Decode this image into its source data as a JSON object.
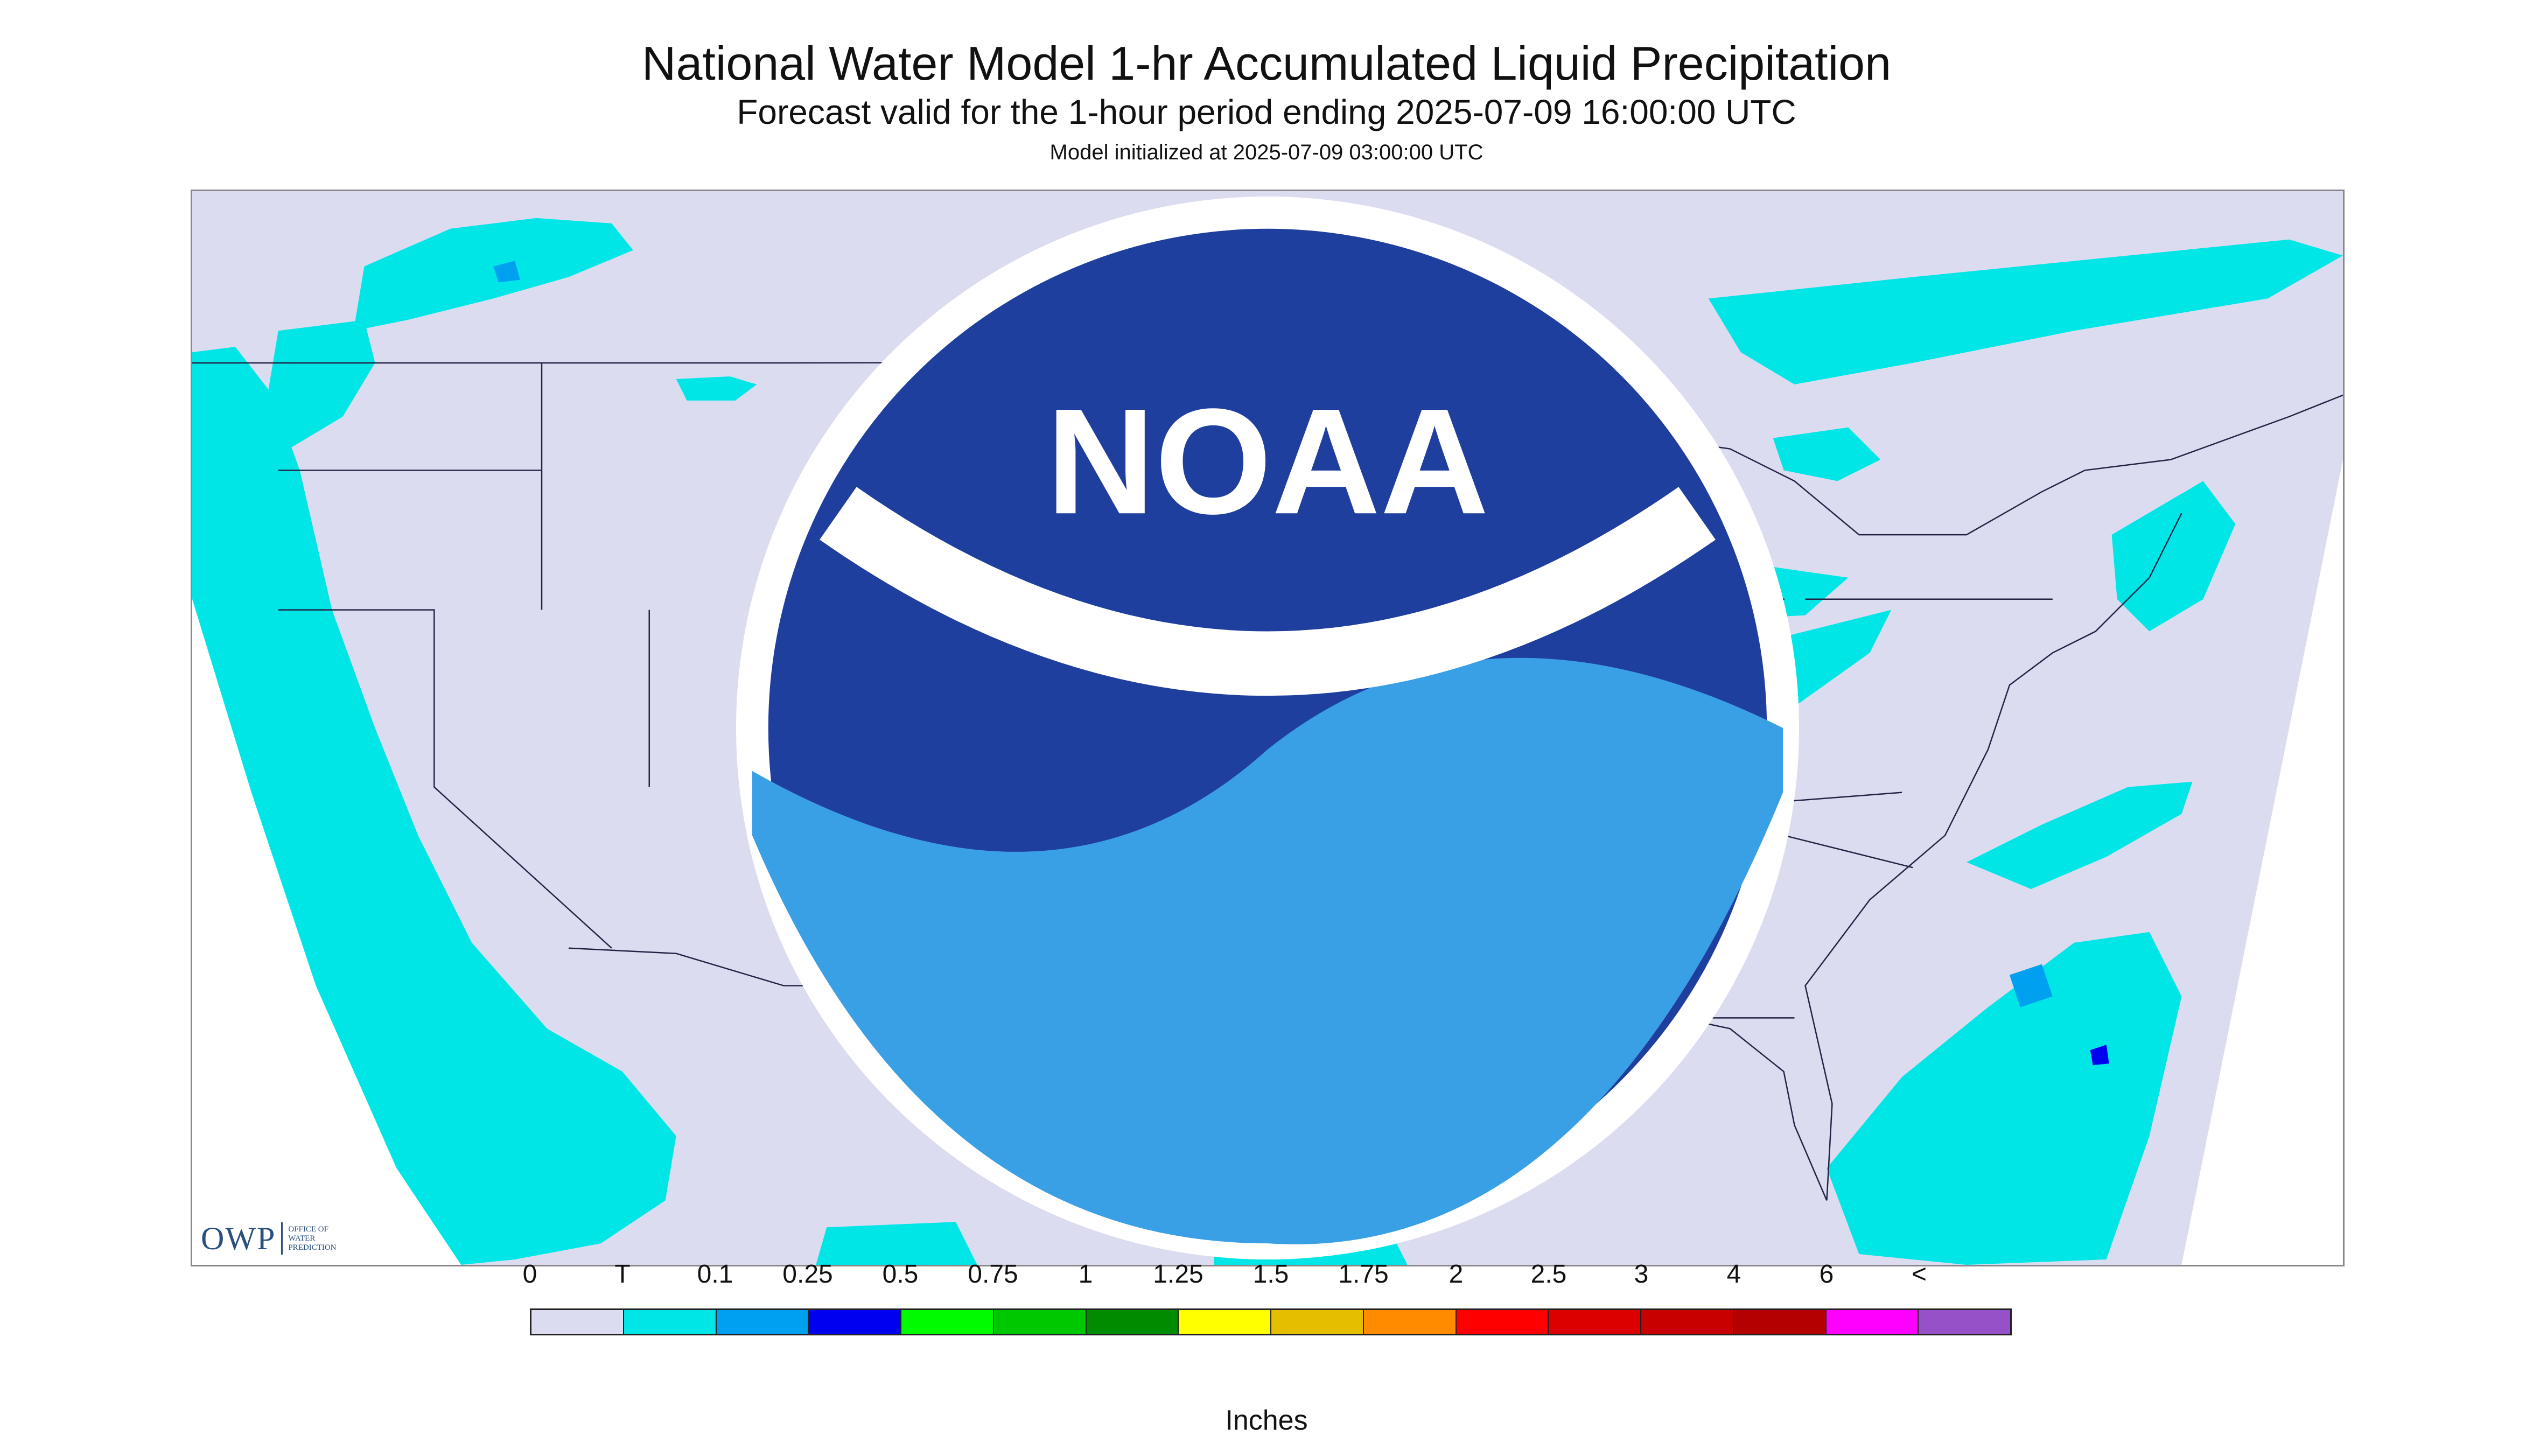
{
  "title": "National Water Model 1-hr Accumulated Liquid Precipitation",
  "subtitle": "Forecast valid for the 1-hour period ending 2025-07-09 16:00:00 UTC",
  "init_line": "Model initialized at 2025-07-09 03:00:00 UTC",
  "map": {
    "projection": "Lambert conformal",
    "land_color": "#dcdcf0",
    "outside_color": "#ffffff",
    "border_color": "#222244",
    "trace_color": "#00e6e6",
    "moderate_color": "#00a0f0",
    "heavy_color": "#0000f0"
  },
  "logos": {
    "owp_word": "OWP",
    "owp_sub": [
      "OFFICE OF",
      "WATER",
      "PREDICTION"
    ],
    "noaa_label": "NOAA"
  },
  "legend": {
    "units": "Inches",
    "tick_labels": [
      "0",
      "T",
      "0.1",
      "0.25",
      "0.5",
      "0.75",
      "1",
      "1.25",
      "1.5",
      "1.75",
      "2",
      "2.5",
      "3",
      "4",
      "6",
      "<"
    ],
    "colors": [
      "#dcdcf0",
      "#00e6e6",
      "#00a0f0",
      "#0000f0",
      "#00fa00",
      "#00c800",
      "#008c00",
      "#ffff00",
      "#e6be00",
      "#ff8c00",
      "#ff0000",
      "#dc0000",
      "#c80000",
      "#b40000",
      "#ff00ff",
      "#9650c8"
    ]
  }
}
